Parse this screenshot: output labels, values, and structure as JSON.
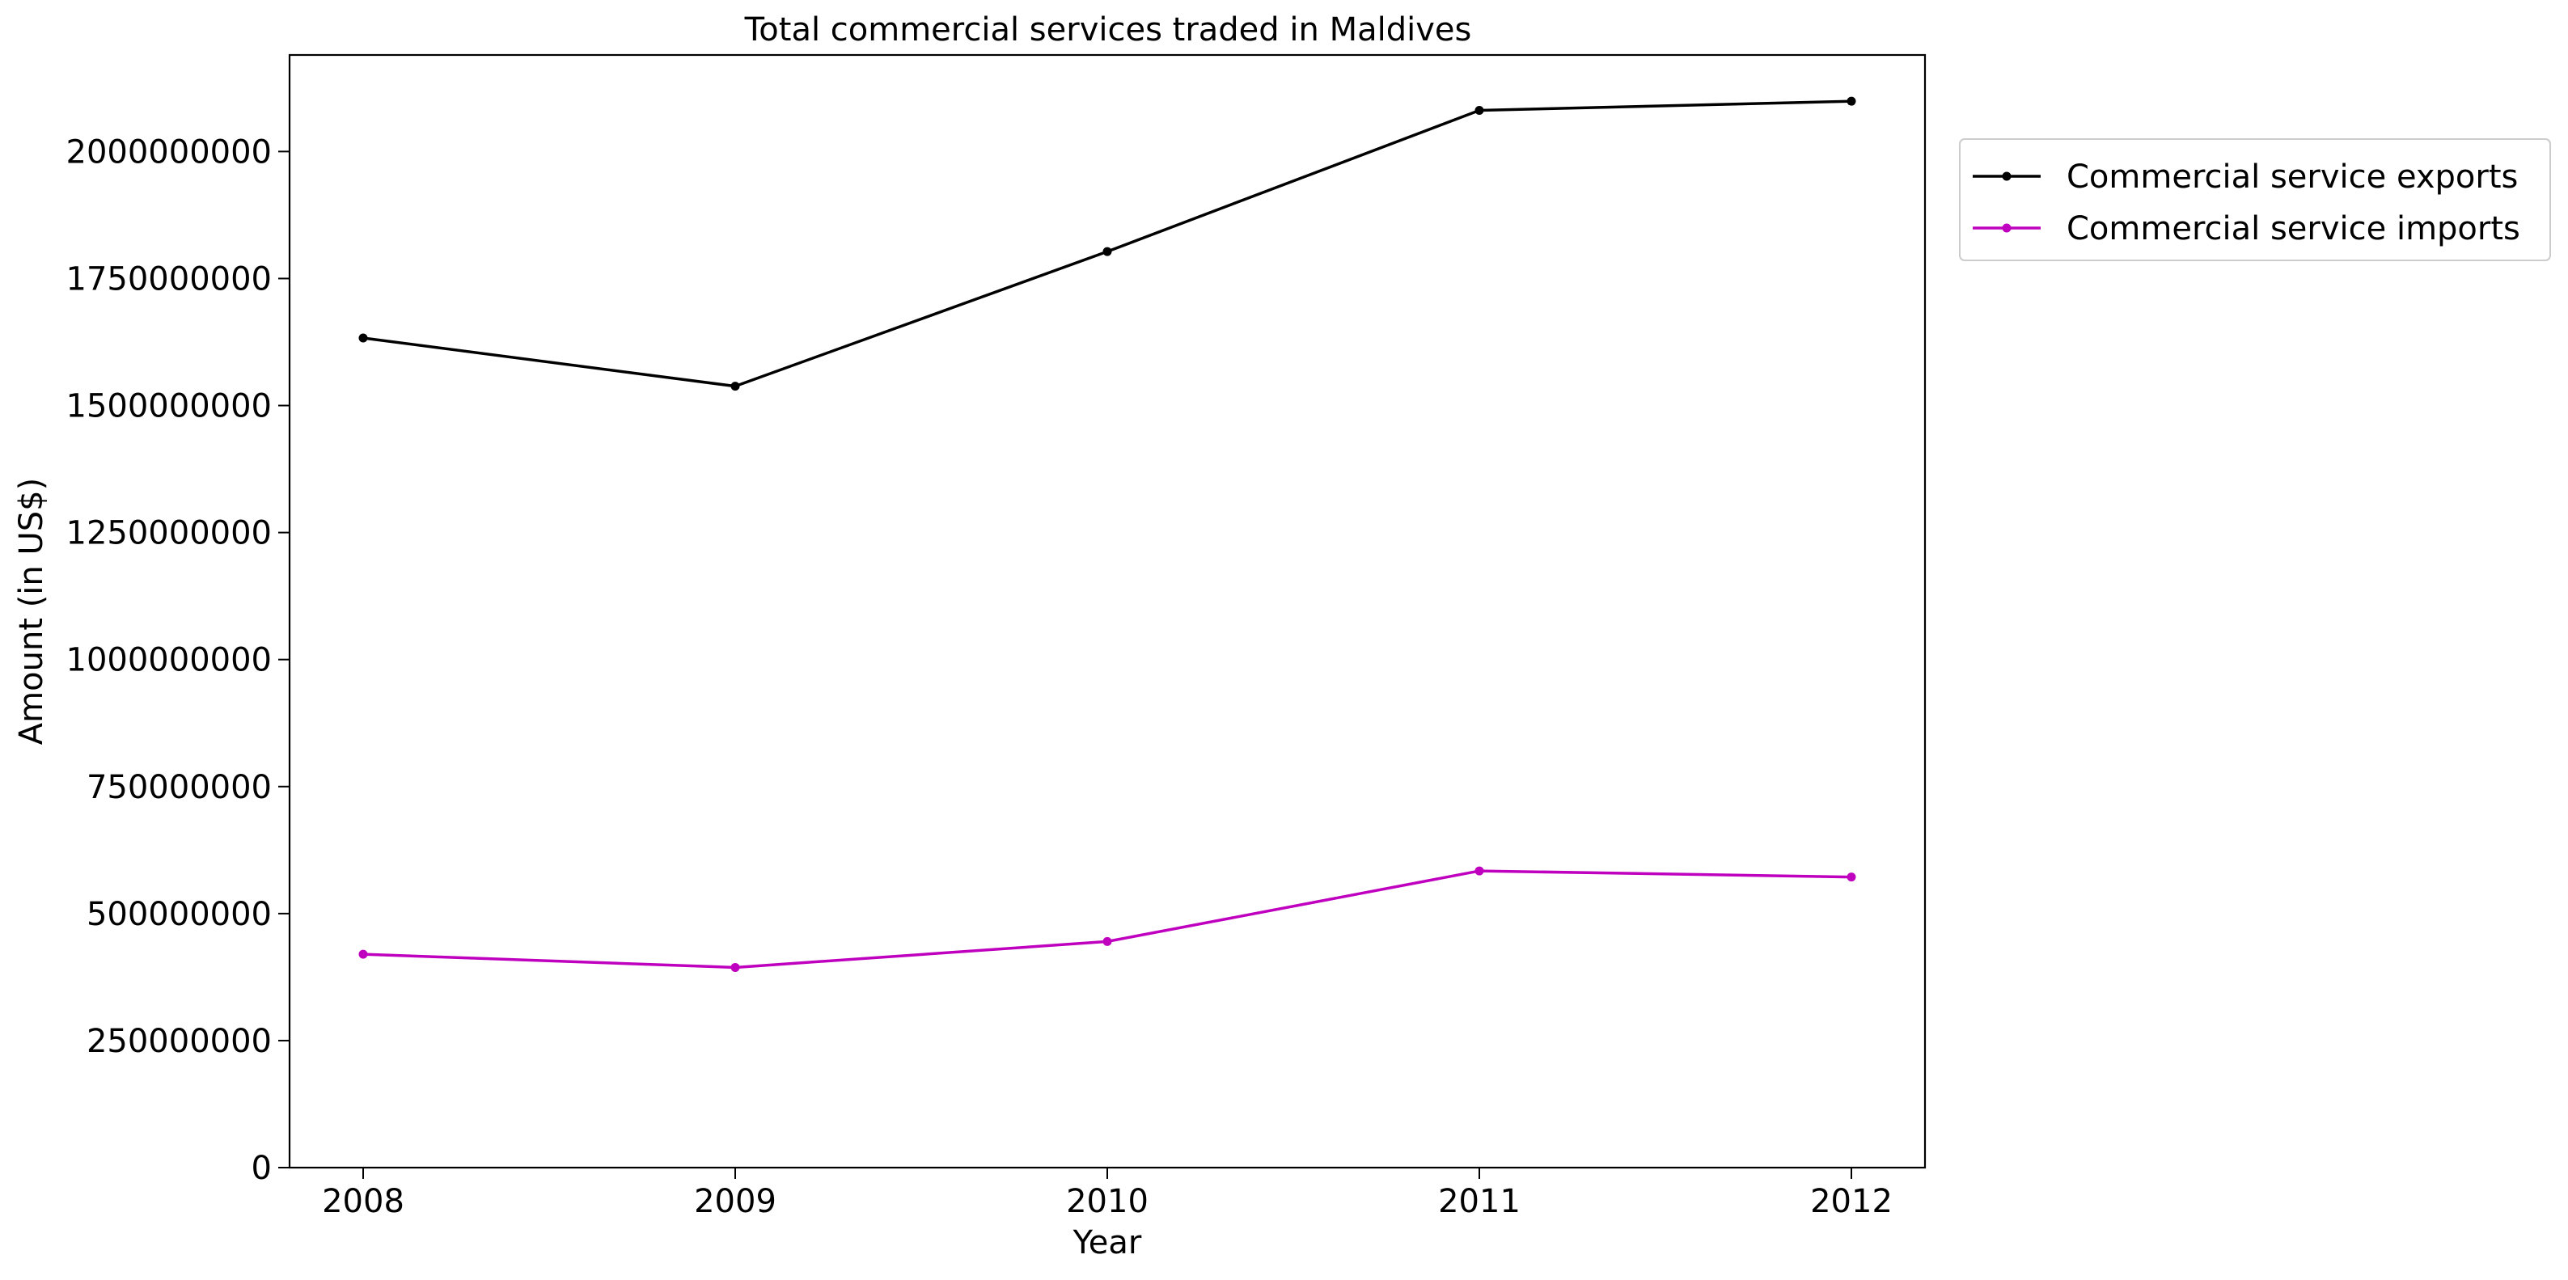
{
  "chart_data": {
    "type": "line",
    "title": "Total commercial services traded in Maldives",
    "xlabel": "Year",
    "ylabel": "Amount (in US$)",
    "x": [
      "2008",
      "2009",
      "2010",
      "2011",
      "2012"
    ],
    "ylim": [
      0,
      2190000000
    ],
    "y_ticks": [
      0,
      250000000,
      500000000,
      750000000,
      1000000000,
      1250000000,
      1500000000,
      1750000000,
      2000000000
    ],
    "y_tick_labels": [
      "0",
      "250000000",
      "500000000",
      "750000000",
      "1000000000",
      "1250000000",
      "1500000000",
      "1750000000",
      "2000000000"
    ],
    "grid": false,
    "legend_position": "outside-top-right",
    "series": [
      {
        "name": "Commercial service exports",
        "color": "#000000",
        "marker": "dot",
        "values": [
          1633000000,
          1538000000,
          1803000000,
          2081000000,
          2099000000
        ]
      },
      {
        "name": "Commercial service imports",
        "color": "#bf00bf",
        "marker": "dot",
        "values": [
          420000000,
          394000000,
          445000000,
          584000000,
          572000000
        ]
      }
    ]
  }
}
